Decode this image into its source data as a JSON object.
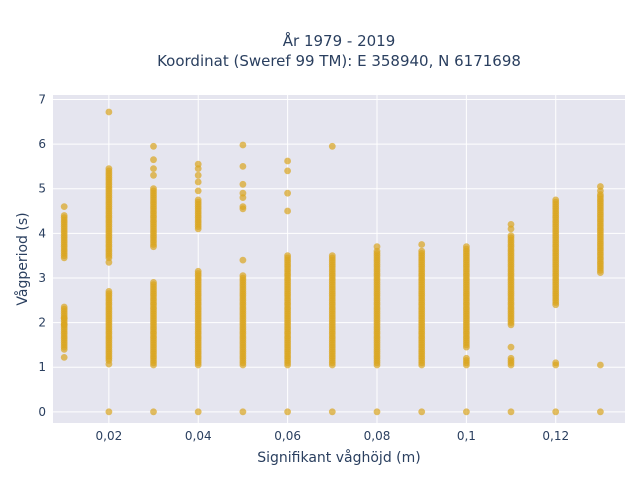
{
  "chart_data": {
    "type": "scatter",
    "title_line1": "År 1979 - 2019",
    "title_line2": "Koordinat (Sweref 99 TM): E 358940, N 6171698",
    "xlabel": "Signifikant våghöjd (m)",
    "ylabel": "Vågperiod (s)",
    "xlim": [
      0.0075,
      0.1355
    ],
    "ylim": [
      -0.25,
      7.1
    ],
    "x_ticks": [
      0.02,
      0.04,
      0.06,
      0.08,
      0.1,
      0.12
    ],
    "x_tick_labels": [
      "0,02",
      "0,04",
      "0,06",
      "0,08",
      "0,1",
      "0,12"
    ],
    "y_ticks": [
      0,
      1,
      2,
      3,
      4,
      5,
      6,
      7
    ],
    "y_tick_labels": [
      "0",
      "1",
      "2",
      "3",
      "4",
      "5",
      "6",
      "7"
    ],
    "grid": true,
    "marker_color": "#DAA520",
    "background": "#E5E5EF",
    "columns": [
      {
        "x": 0.01,
        "ranges": [
          [
            3.45,
            4.4
          ],
          [
            1.4,
            2.35
          ]
        ],
        "points": [
          4.6,
          1.22,
          1.95,
          2.1
        ]
      },
      {
        "x": 0.02,
        "ranges": [
          [
            3.45,
            5.4
          ],
          [
            1.15,
            2.7
          ]
        ],
        "points": [
          0,
          6.72,
          5.45,
          3.35,
          1.07
        ]
      },
      {
        "x": 0.03,
        "ranges": [
          [
            3.75,
            5.0
          ],
          [
            1.05,
            2.92
          ]
        ],
        "points": [
          0,
          5.95,
          5.65,
          5.45,
          5.3,
          3.7
        ]
      },
      {
        "x": 0.04,
        "ranges": [
          [
            4.1,
            4.75
          ],
          [
            1.05,
            3.15
          ]
        ],
        "points": [
          0,
          5.55,
          5.45,
          5.3,
          5.15,
          4.95
        ]
      },
      {
        "x": 0.05,
        "ranges": [
          [
            1.05,
            3.05
          ]
        ],
        "points": [
          0,
          5.98,
          5.5,
          5.1,
          4.9,
          4.8,
          4.6,
          4.55,
          3.4
        ]
      },
      {
        "x": 0.06,
        "ranges": [
          [
            1.05,
            3.5
          ]
        ],
        "points": [
          0,
          5.62,
          5.4,
          4.9,
          4.5
        ]
      },
      {
        "x": 0.07,
        "ranges": [
          [
            1.05,
            3.5
          ]
        ],
        "points": [
          0,
          5.95
        ]
      },
      {
        "x": 0.08,
        "ranges": [
          [
            1.05,
            3.6
          ]
        ],
        "points": [
          0,
          3.7
        ]
      },
      {
        "x": 0.09,
        "ranges": [
          [
            1.05,
            3.6
          ]
        ],
        "points": [
          0,
          3.75
        ]
      },
      {
        "x": 0.1,
        "ranges": [
          [
            1.45,
            3.7
          ],
          [
            1.05,
            1.2
          ]
        ],
        "points": [
          0
        ]
      },
      {
        "x": 0.11,
        "ranges": [
          [
            1.95,
            3.95
          ],
          [
            1.05,
            1.2
          ]
        ],
        "points": [
          0,
          4.2,
          4.1,
          1.45
        ]
      },
      {
        "x": 0.12,
        "ranges": [
          [
            2.4,
            4.75
          ],
          [
            1.05,
            1.1
          ]
        ],
        "points": [
          0
        ]
      },
      {
        "x": 0.13,
        "ranges": [
          [
            3.12,
            4.9
          ]
        ],
        "points": [
          0,
          5.05,
          4.95,
          1.05
        ]
      }
    ]
  }
}
